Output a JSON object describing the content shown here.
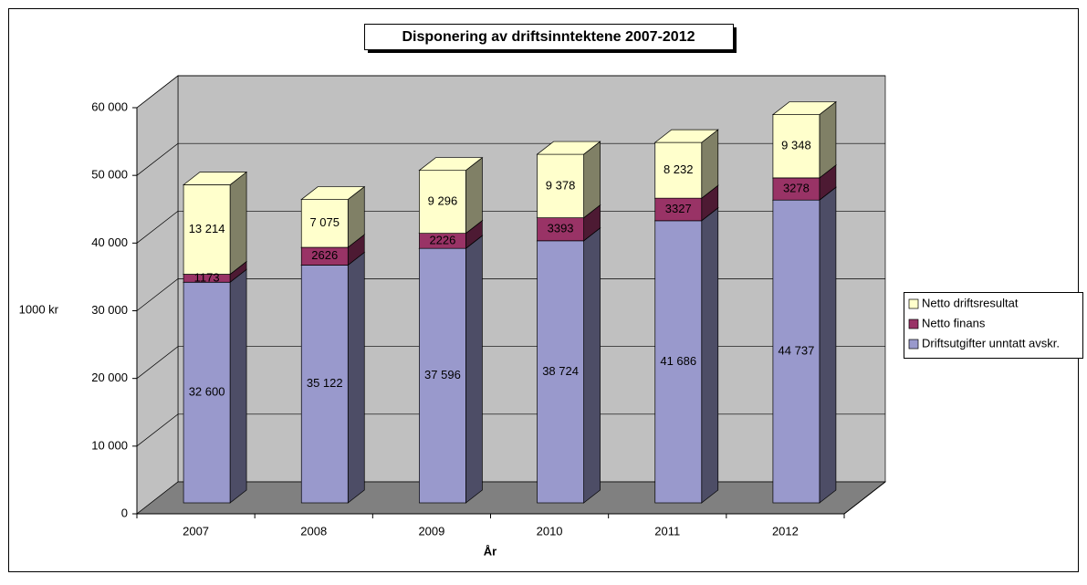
{
  "chart_data": {
    "type": "bar3d_stacked",
    "title": "Disponering av driftsinntektene 2007-2012",
    "y_label": "1000 kr",
    "x_label": "År",
    "categories": [
      "2007",
      "2008",
      "2009",
      "2010",
      "2011",
      "2012"
    ],
    "series": [
      {
        "name": "Driftsutgifter unntatt avskr.",
        "color": "#9999cc",
        "values": [
          32600,
          35122,
          37596,
          38724,
          41686,
          44737
        ],
        "value_labels": [
          "32 600",
          "35 122",
          "37 596",
          "38 724",
          "41 686",
          "44 737"
        ]
      },
      {
        "name": "Netto finans",
        "color": "#993366",
        "values": [
          1173,
          2626,
          2226,
          3393,
          3327,
          3278
        ]
      },
      {
        "name": "Netto driftsresultat",
        "color": "#ffffcc",
        "values": [
          13214,
          7075,
          9296,
          9378,
          8232,
          9348
        ],
        "value_labels": [
          "13 214",
          "7 075",
          "9 296",
          "9 378",
          "8 232",
          "9 348"
        ]
      }
    ],
    "ylim": [
      0,
      60000
    ],
    "yticks": [
      0,
      {
        "value": 10000,
        "label": "10 000"
      },
      {
        "value": 20000,
        "label": "20 000"
      },
      {
        "value": 30000,
        "label": "30 000"
      },
      {
        "value": 40000,
        "label": "40 000"
      },
      {
        "value": 50000,
        "label": "50 000"
      },
      {
        "value": 60000,
        "label": "60 000"
      }
    ],
    "grid": true,
    "legend": "right"
  }
}
